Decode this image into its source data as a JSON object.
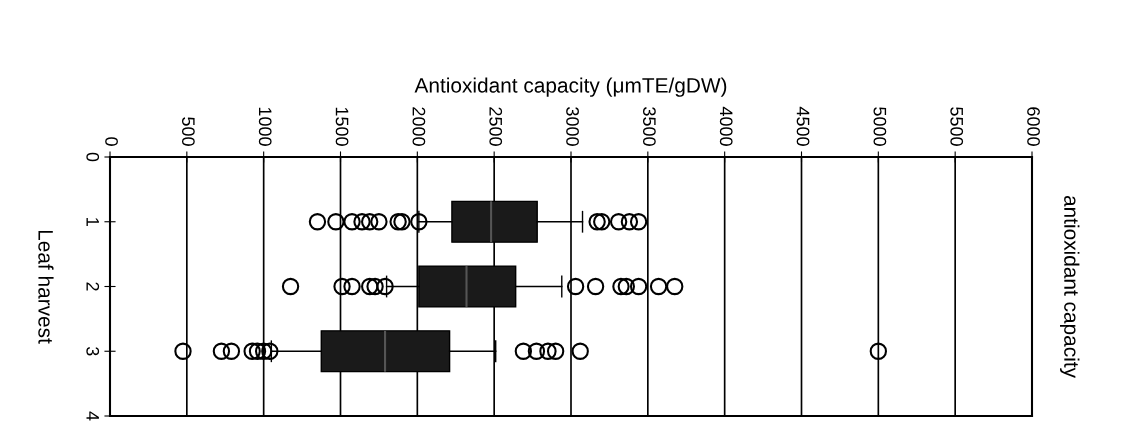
{
  "chart_data": {
    "type": "box",
    "orientation": "horizontal",
    "title": "antioxidant capacity",
    "xlabel": "Antioxidant capacity (μmTE/gDW)",
    "ylabel": "Leaf harvest",
    "x": [
      1,
      2,
      3
    ],
    "color": "#1a1a1a",
    "boxes": [
      {
        "low": 2010,
        "q1": 2225,
        "median": 2480,
        "q3": 2780,
        "high": 3075,
        "outliers": [
          1350,
          1470,
          1575,
          1640,
          1690,
          1750,
          1875,
          1900,
          2010,
          3170,
          3200,
          3310,
          3380,
          3440
        ]
      },
      {
        "low": 1800,
        "q1": 2010,
        "median": 2320,
        "q3": 2640,
        "high": 2940,
        "outliers": [
          1175,
          1510,
          1575,
          1690,
          1725,
          1790,
          3030,
          3160,
          3325,
          3360,
          3440,
          3570,
          3675
        ]
      },
      {
        "low": 1050,
        "q1": 1375,
        "median": 1790,
        "q3": 2210,
        "high": 2510,
        "outliers": [
          475,
          725,
          790,
          925,
          960,
          1000,
          1040,
          2690,
          2775,
          2850,
          2900,
          3060,
          5000
        ]
      }
    ],
    "xlim": [
      0,
      6000
    ],
    "xticks": [
      0,
      500,
      1000,
      1500,
      2000,
      2500,
      3000,
      3500,
      4000,
      4500,
      5000,
      5500,
      6000
    ],
    "ylim": [
      4,
      0
    ],
    "yticks": [
      0,
      1,
      2,
      3,
      4
    ],
    "grid": "x",
    "marker": "circle"
  }
}
